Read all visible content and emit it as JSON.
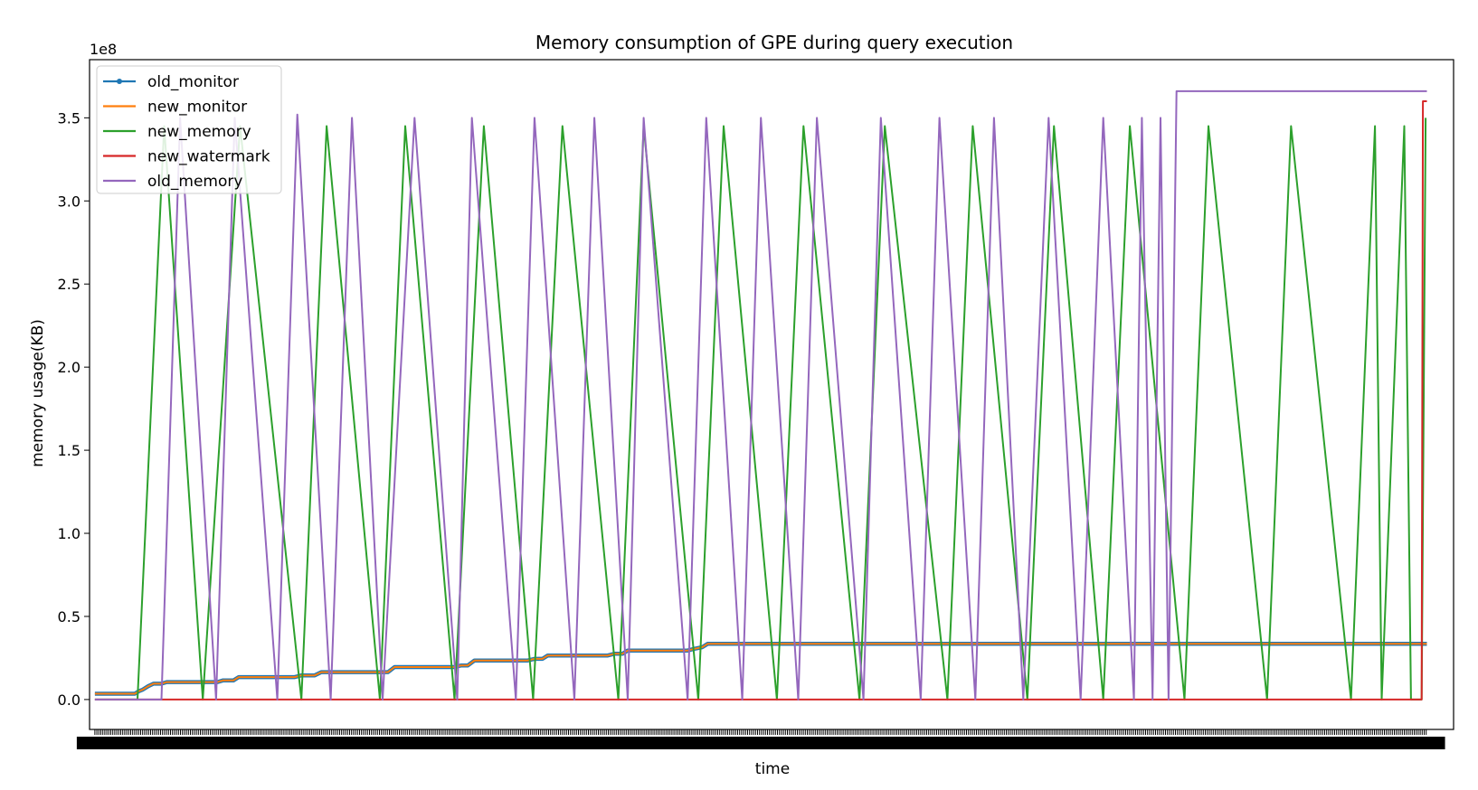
{
  "chart_data": {
    "type": "line",
    "title": "Memory consumption of GPE during query execution",
    "xlabel": "time",
    "ylabel": "memory usage(KB)",
    "y_offset_text": "1e8",
    "ylim": [
      -18000000,
      385000000
    ],
    "yticks": [
      0,
      50000000,
      100000000,
      150000000,
      200000000,
      250000000,
      300000000,
      350000000
    ],
    "ytick_labels": [
      "0.0",
      "0.5",
      "1.0",
      "1.5",
      "2.0",
      "2.5",
      "3.0",
      "3.5"
    ],
    "x_tick_labels_note": "dense overlapping tick labels, illegible",
    "xlim": [
      -4,
      1020
    ],
    "grid": false,
    "legend_position": "upper left",
    "series": [
      {
        "name": "old_monitor",
        "color": "#1f77b4",
        "marker": "o",
        "points": [
          [
            0,
            3500000.0
          ],
          [
            30,
            3500000.0
          ],
          [
            33,
            5000000.0
          ],
          [
            36,
            6000000.0
          ],
          [
            40,
            8000000.0
          ],
          [
            44,
            9500000.0
          ],
          [
            50,
            9500000.0
          ],
          [
            54,
            10500000.0
          ],
          [
            92,
            10500000.0
          ],
          [
            96,
            11500000.0
          ],
          [
            104,
            11500000.0
          ],
          [
            108,
            13500000.0
          ],
          [
            150,
            13500000.0
          ],
          [
            155,
            14500000.0
          ],
          [
            165,
            14500000.0
          ],
          [
            170,
            16500000.0
          ],
          [
            220,
            16500000.0
          ],
          [
            225,
            19500000.0
          ],
          [
            270,
            19500000.0
          ],
          [
            275,
            20500000.0
          ],
          [
            280,
            20500000.0
          ],
          [
            285,
            23500000.0
          ],
          [
            325,
            23500000.0
          ],
          [
            330,
            24500000.0
          ],
          [
            336,
            24500000.0
          ],
          [
            340,
            26500000.0
          ],
          [
            385,
            26500000.0
          ],
          [
            390,
            27500000.0
          ],
          [
            396,
            27500000.0
          ],
          [
            400,
            29500000.0
          ],
          [
            445,
            29500000.0
          ],
          [
            450,
            30500000.0
          ],
          [
            456,
            31500000.0
          ],
          [
            460,
            33500000.0
          ],
          [
            1000,
            33500000.0
          ]
        ]
      },
      {
        "name": "new_monitor",
        "color": "#ff7f0e",
        "marker": "",
        "points": [
          [
            0,
            3500000.0
          ],
          [
            30,
            3500000.0
          ],
          [
            33,
            5000000.0
          ],
          [
            36,
            6000000.0
          ],
          [
            40,
            8000000.0
          ],
          [
            44,
            9500000.0
          ],
          [
            50,
            9500000.0
          ],
          [
            54,
            10500000.0
          ],
          [
            92,
            10500000.0
          ],
          [
            96,
            11500000.0
          ],
          [
            104,
            11500000.0
          ],
          [
            108,
            13500000.0
          ],
          [
            150,
            13500000.0
          ],
          [
            155,
            14500000.0
          ],
          [
            165,
            14500000.0
          ],
          [
            170,
            16500000.0
          ],
          [
            220,
            16500000.0
          ],
          [
            225,
            19500000.0
          ],
          [
            270,
            19500000.0
          ],
          [
            275,
            20500000.0
          ],
          [
            280,
            20500000.0
          ],
          [
            285,
            23500000.0
          ],
          [
            325,
            23500000.0
          ],
          [
            330,
            24500000.0
          ],
          [
            336,
            24500000.0
          ],
          [
            340,
            26500000.0
          ],
          [
            385,
            26500000.0
          ],
          [
            390,
            27500000.0
          ],
          [
            396,
            27500000.0
          ],
          [
            400,
            29500000.0
          ],
          [
            445,
            29500000.0
          ],
          [
            450,
            30500000.0
          ],
          [
            456,
            31500000.0
          ],
          [
            460,
            33500000.0
          ],
          [
            1000,
            33500000.0
          ]
        ]
      },
      {
        "name": "new_memory",
        "color": "#2ca02c",
        "marker": "",
        "points": [
          [
            0,
            0
          ],
          [
            32,
            0
          ],
          [
            52,
            345000000.0
          ],
          [
            81,
            0
          ],
          [
            109,
            345000000.0
          ],
          [
            155,
            0
          ],
          [
            174,
            345000000.0
          ],
          [
            214,
            0
          ],
          [
            233,
            345000000.0
          ],
          [
            270,
            0
          ],
          [
            292,
            345000000.0
          ],
          [
            329,
            0
          ],
          [
            351,
            345000000.0
          ],
          [
            393,
            0
          ],
          [
            412,
            345000000.0
          ],
          [
            453,
            0
          ],
          [
            472,
            345000000.0
          ],
          [
            512,
            0
          ],
          [
            532,
            345000000.0
          ],
          [
            574,
            0
          ],
          [
            593,
            345000000.0
          ],
          [
            640,
            0
          ],
          [
            659,
            345000000.0
          ],
          [
            700,
            0
          ],
          [
            720,
            345000000.0
          ],
          [
            757,
            0
          ],
          [
            777,
            345000000.0
          ],
          [
            818,
            0
          ],
          [
            836,
            345000000.0
          ],
          [
            880,
            0
          ],
          [
            898,
            345000000.0
          ],
          [
            943,
            0
          ],
          [
            961,
            345000000.0
          ],
          [
            966,
            0
          ],
          [
            983,
            345000000.0
          ],
          [
            988,
            0
          ],
          [
            996,
            0
          ],
          [
            999,
            350000000.0
          ]
        ]
      },
      {
        "name": "new_watermark",
        "color": "#d62728",
        "marker": "",
        "points": [
          [
            0,
            0
          ],
          [
            996,
            0
          ],
          [
            997,
            360000000.0
          ],
          [
            1000,
            360000000.0
          ]
        ]
      },
      {
        "name": "old_memory",
        "color": "#9467bd",
        "marker": "",
        "points": [
          [
            0,
            0
          ],
          [
            50,
            0
          ],
          [
            64,
            350000000.0
          ],
          [
            91,
            0
          ],
          [
            105,
            350000000.0
          ],
          [
            137,
            0
          ],
          [
            152,
            352000000.0
          ],
          [
            177,
            0
          ],
          [
            193,
            350000000.0
          ],
          [
            216,
            0
          ],
          [
            240,
            350000000.0
          ],
          [
            272,
            0
          ],
          [
            283,
            350000000.0
          ],
          [
            316,
            0
          ],
          [
            330,
            350000000.0
          ],
          [
            360,
            0
          ],
          [
            375,
            350000000.0
          ],
          [
            400,
            0
          ],
          [
            412,
            350000000.0
          ],
          [
            445,
            0
          ],
          [
            459,
            350000000.0
          ],
          [
            486,
            0
          ],
          [
            500,
            350000000.0
          ],
          [
            528,
            0
          ],
          [
            542,
            350000000.0
          ],
          [
            577,
            0
          ],
          [
            590,
            350000000.0
          ],
          [
            620,
            0
          ],
          [
            634,
            350000000.0
          ],
          [
            661,
            0
          ],
          [
            675,
            350000000.0
          ],
          [
            697,
            0
          ],
          [
            716,
            350000000.0
          ],
          [
            740,
            0
          ],
          [
            757,
            350000000.0
          ],
          [
            780,
            0
          ],
          [
            786,
            350000000.0
          ],
          [
            794,
            0
          ],
          [
            800,
            350000000.0
          ],
          [
            806,
            0
          ],
          [
            812,
            366000000.0
          ],
          [
            1000,
            366000000.0
          ]
        ]
      }
    ]
  }
}
